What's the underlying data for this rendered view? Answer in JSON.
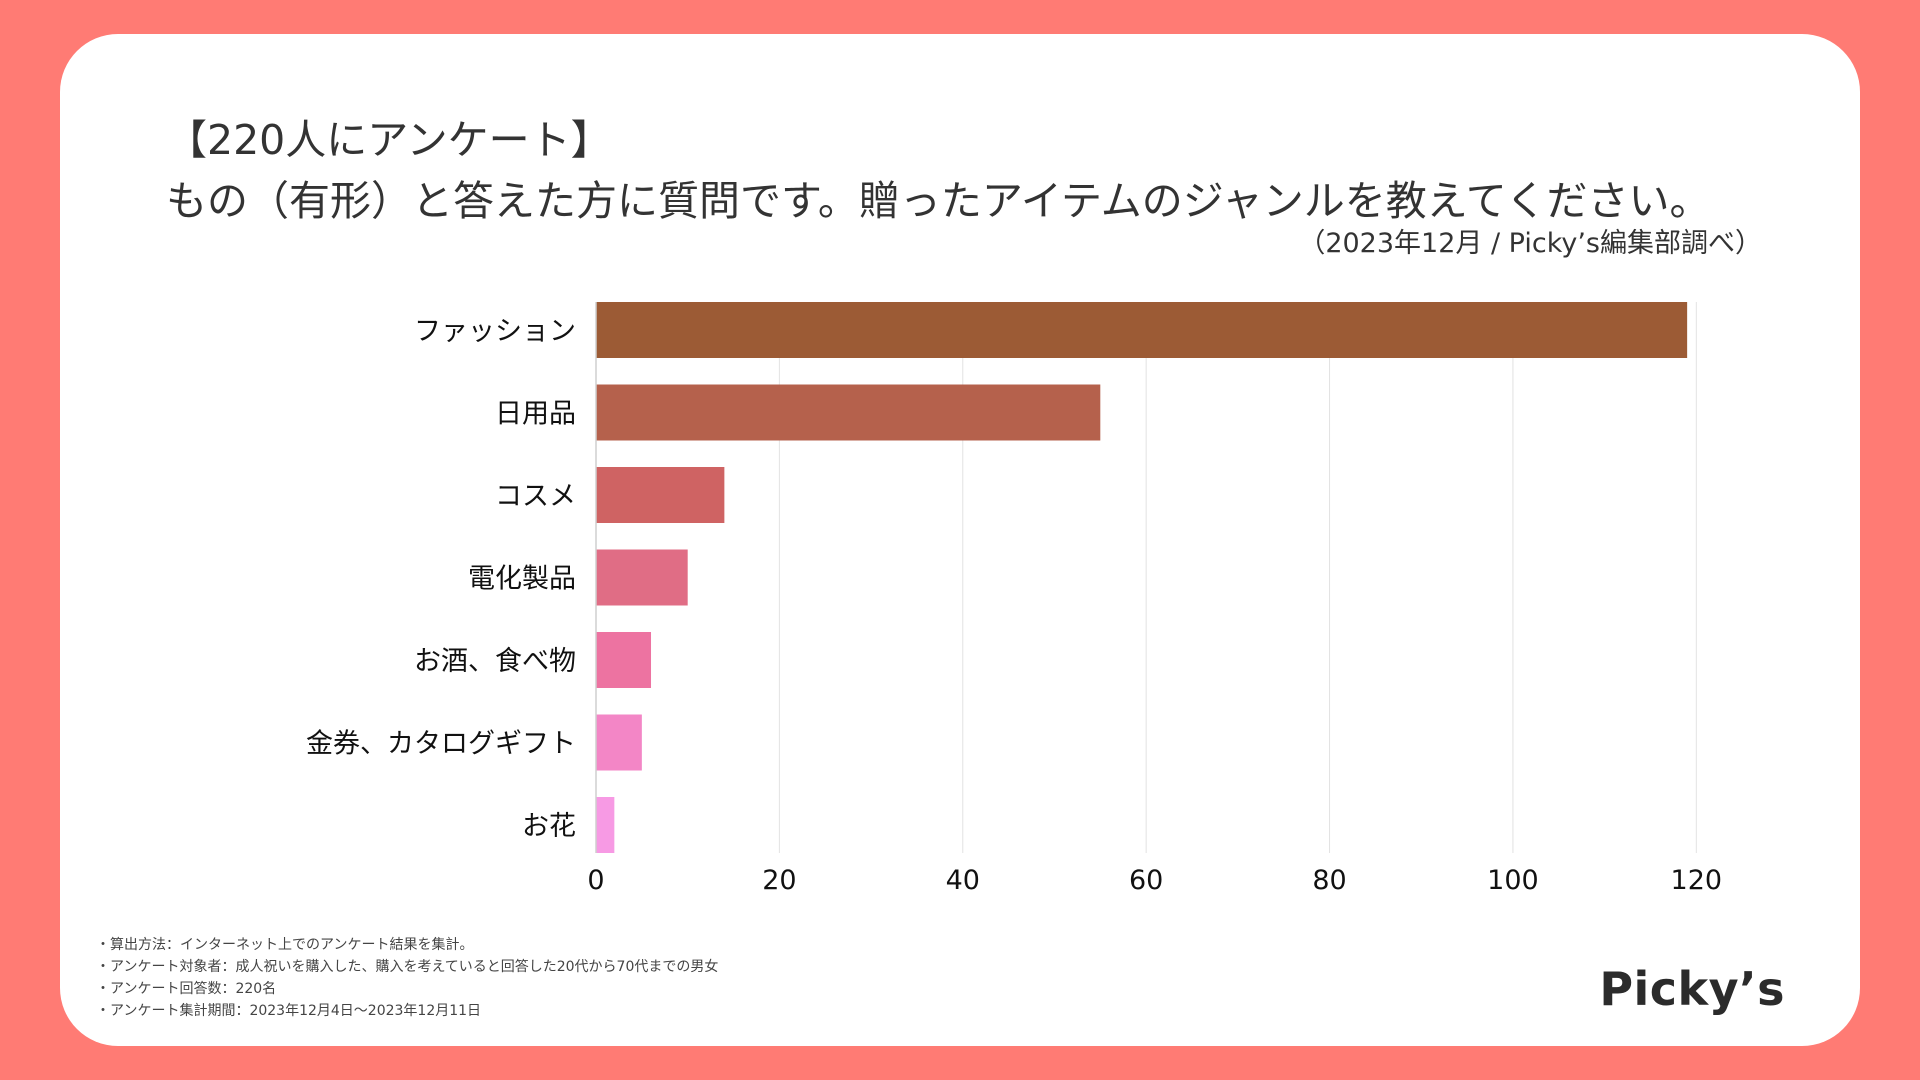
{
  "header": {
    "title_line1": "【220人にアンケート】",
    "title_line2": "もの（有形）と答えた方に質問です。贈ったアイテムのジャンルを教えてください。",
    "source": "（2023年12月 / Picky’s編集部調べ）"
  },
  "chart_data": {
    "type": "bar",
    "orientation": "horizontal",
    "title": "【220人にアンケート】もの（有形）と答えた方に質問です。贈ったアイテムのジャンルを教えてください。",
    "xlabel": "",
    "ylabel": "",
    "xlim": [
      0,
      130
    ],
    "xticks": [
      0,
      20,
      40,
      60,
      80,
      100,
      120
    ],
    "grid": "vertical",
    "categories": [
      "ファッション",
      "日用品",
      "コスメ",
      "電化製品",
      "お酒、食べ物",
      "金券、カタログギフト",
      "お花"
    ],
    "values": [
      119,
      55,
      14,
      10,
      6,
      5,
      2
    ],
    "colors": [
      "#9c5b35",
      "#b5614c",
      "#cf6363",
      "#e06d85",
      "#ed73a1",
      "#f386c6",
      "#f79ae4"
    ]
  },
  "notes": [
    "・算出方法：インターネット上でのアンケート結果を集計。",
    "・アンケート対象者：成人祝いを購入した、購入を考えていると回答した20代から70代までの男女",
    "・アンケート回答数：220名",
    "・アンケート集計期間：2023年12月4日〜2023年12月11日"
  ],
  "brand": {
    "logo_text": "Picky’s"
  }
}
